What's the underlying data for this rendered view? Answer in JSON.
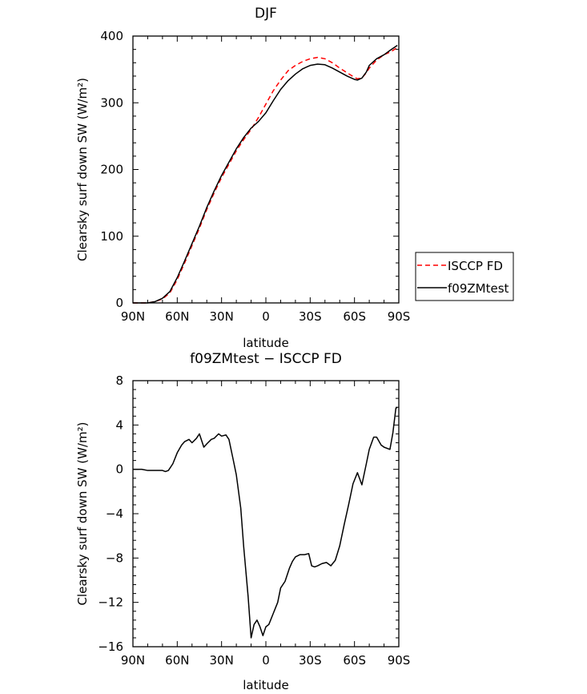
{
  "chart_data": [
    {
      "type": "line",
      "title": "DJF",
      "xlabel": "latitude",
      "ylabel": "Clearsky surf down SW (W/m²)",
      "x_ticks": [
        -90,
        -60,
        -30,
        0,
        30,
        60,
        90
      ],
      "x_tick_labels": [
        "90N",
        "60N",
        "30N",
        "0",
        "30S",
        "60S",
        "90S"
      ],
      "xlim": [
        -90,
        90
      ],
      "ylim": [
        0,
        400
      ],
      "y_ticks": [
        0,
        100,
        200,
        300,
        400
      ],
      "legend_position": "outside-right",
      "series": [
        {
          "name": "ISCCP FD",
          "color": "#ff0000",
          "dash": "dashed",
          "x": [
            -90,
            -85,
            -80,
            -75,
            -70,
            -65,
            -60,
            -55,
            -50,
            -45,
            -40,
            -35,
            -30,
            -25,
            -20,
            -15,
            -10,
            -5,
            0,
            5,
            10,
            15,
            20,
            25,
            30,
            35,
            40,
            45,
            50,
            55,
            60,
            62,
            65,
            68,
            70,
            75,
            80,
            85,
            89
          ],
          "y": [
            0,
            0,
            0,
            2,
            6,
            15,
            35,
            60,
            86,
            112,
            140,
            165,
            188,
            208,
            228,
            245,
            260,
            278,
            298,
            318,
            334,
            348,
            356,
            362,
            366,
            368,
            366,
            360,
            352,
            345,
            338,
            336,
            337,
            345,
            352,
            364,
            372,
            377,
            383
          ]
        },
        {
          "name": "f09ZMtest",
          "color": "#000000",
          "dash": "solid",
          "x": [
            -90,
            -85,
            -80,
            -75,
            -70,
            -65,
            -60,
            -55,
            -50,
            -45,
            -40,
            -35,
            -30,
            -25,
            -20,
            -15,
            -10,
            -5,
            0,
            5,
            10,
            15,
            20,
            25,
            30,
            35,
            40,
            45,
            50,
            55,
            60,
            62,
            65,
            68,
            70,
            75,
            80,
            85,
            89
          ],
          "y": [
            0,
            0,
            0,
            2,
            7,
            17,
            38,
            63,
            89,
            115,
            143,
            168,
            191,
            211,
            231,
            248,
            262,
            272,
            285,
            303,
            320,
            333,
            343,
            351,
            356,
            358,
            357,
            352,
            346,
            340,
            335,
            334,
            337,
            346,
            356,
            366,
            372,
            380,
            386
          ]
        }
      ]
    },
    {
      "type": "line",
      "title": "f09ZMtest − ISCCP FD",
      "xlabel": "latitude",
      "ylabel": "Clearsky surf down SW (W/m²)",
      "x_ticks": [
        -90,
        -60,
        -30,
        0,
        30,
        60,
        90
      ],
      "x_tick_labels": [
        "90N",
        "60N",
        "30N",
        "0",
        "30S",
        "60S",
        "90S"
      ],
      "xlim": [
        -90,
        90
      ],
      "ylim": [
        -16,
        8
      ],
      "y_ticks": [
        -16,
        -12,
        -8,
        -4,
        0,
        4,
        8
      ],
      "y_tick_labels": [
        "−16",
        "−12",
        "−8",
        "−4",
        "0",
        "4",
        "8"
      ],
      "series": [
        {
          "name": "",
          "color": "#000000",
          "dash": "solid",
          "x": [
            -90,
            -84,
            -80,
            -75,
            -70,
            -68,
            -66,
            -63,
            -60,
            -57,
            -55,
            -52,
            -50,
            -47,
            -45,
            -42,
            -40,
            -37,
            -35,
            -32,
            -30,
            -27,
            -25,
            -22,
            -20,
            -17,
            -15,
            -12,
            -10,
            -8,
            -6,
            -4,
            -2,
            0,
            2,
            5,
            8,
            10,
            13,
            16,
            18,
            20,
            23,
            26,
            29,
            31,
            33,
            35,
            38,
            41,
            44,
            47,
            50,
            53,
            56,
            59,
            62,
            65,
            68,
            70,
            73,
            75,
            78,
            80,
            84,
            86,
            88,
            89
          ],
          "y": [
            0,
            0,
            -0.1,
            -0.1,
            -0.1,
            -0.2,
            -0.1,
            0.5,
            1.5,
            2.2,
            2.5,
            2.7,
            2.4,
            2.8,
            3.2,
            2.0,
            2.3,
            2.7,
            2.8,
            3.2,
            3.0,
            3.1,
            2.7,
            0.8,
            -0.5,
            -3.5,
            -7.0,
            -11.5,
            -15.2,
            -14.0,
            -13.6,
            -14.2,
            -15.0,
            -14.2,
            -14.0,
            -13.0,
            -12.0,
            -10.7,
            -10.1,
            -8.9,
            -8.3,
            -7.9,
            -7.7,
            -7.7,
            -7.6,
            -8.7,
            -8.8,
            -8.7,
            -8.5,
            -8.4,
            -8.7,
            -8.2,
            -6.9,
            -5.0,
            -3.2,
            -1.3,
            -0.3,
            -1.4,
            0.5,
            1.8,
            2.9,
            2.9,
            2.2,
            2.0,
            1.8,
            3.3,
            5.5,
            5.6
          ]
        }
      ]
    }
  ]
}
